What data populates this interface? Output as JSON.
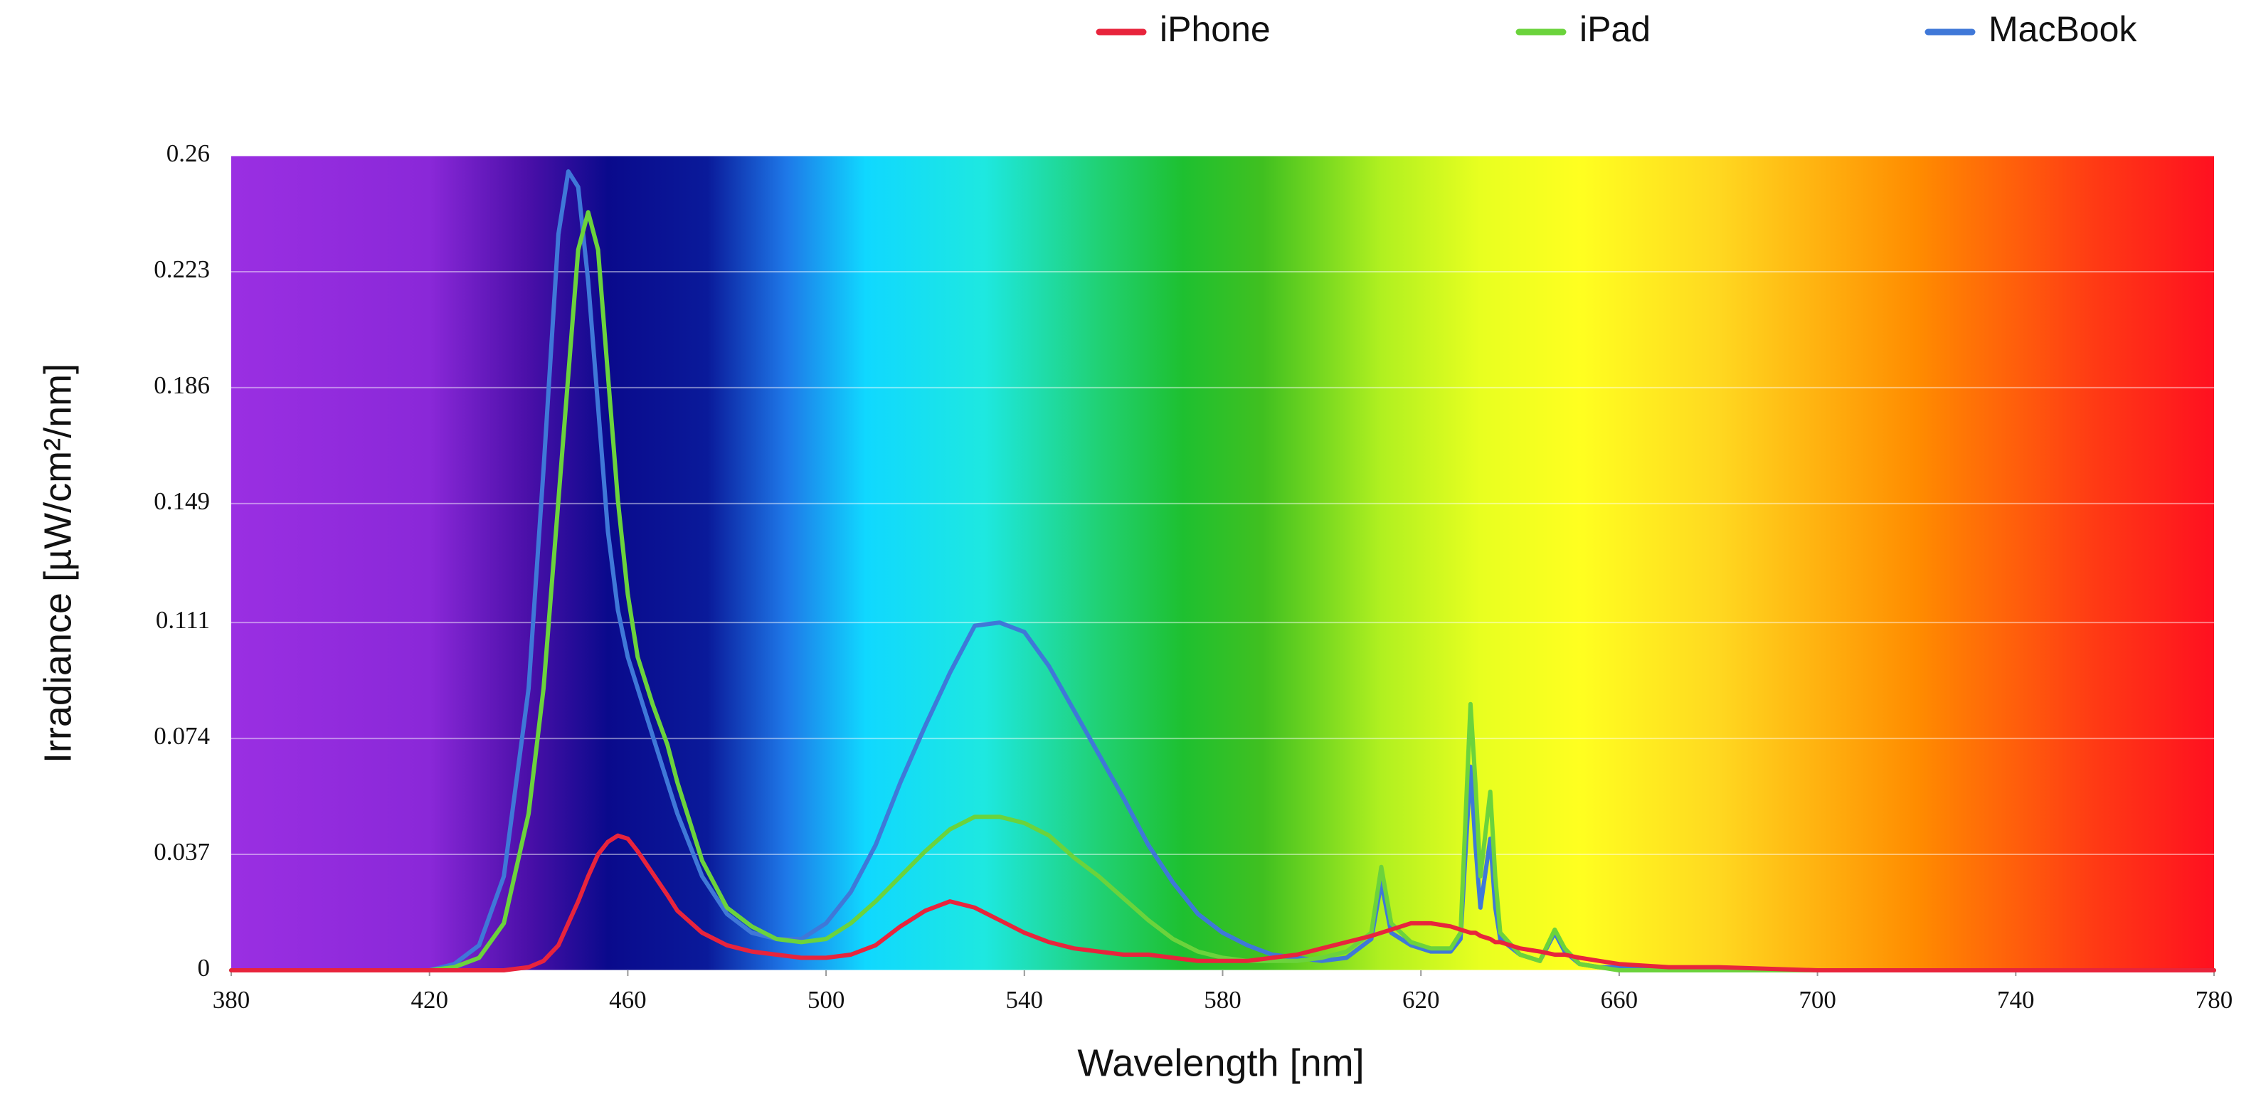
{
  "chart_data": {
    "type": "line",
    "x_label": "Wavelength [nm]",
    "y_label": "Irradiance [µW/cm²/nm]",
    "xlim": [
      380,
      780
    ],
    "xticks": [
      380,
      420,
      460,
      500,
      540,
      580,
      620,
      660,
      700,
      740,
      780
    ],
    "ylim": [
      0,
      0.26
    ],
    "yticks": [
      0,
      0.037,
      0.074,
      0.111,
      0.149,
      0.186,
      0.223,
      0.26
    ],
    "grid": true,
    "legend": "top",
    "x": [
      380,
      400,
      420,
      425,
      430,
      435,
      440,
      443,
      446,
      448,
      450,
      452,
      454,
      456,
      458,
      460,
      462,
      465,
      468,
      470,
      475,
      480,
      485,
      490,
      495,
      500,
      505,
      510,
      515,
      520,
      525,
      530,
      535,
      540,
      545,
      550,
      555,
      560,
      565,
      570,
      575,
      580,
      585,
      590,
      595,
      600,
      605,
      610,
      612,
      614,
      618,
      622,
      626,
      628,
      630,
      631,
      632,
      634,
      635,
      636,
      640,
      644,
      647,
      649,
      652,
      656,
      660,
      670,
      680,
      700,
      740,
      780
    ],
    "series": [
      {
        "name": "iPhone",
        "color": "#e8243c",
        "values": [
          0,
          0,
          0,
          0,
          0,
          0,
          0.001,
          0.003,
          0.008,
          0.015,
          0.022,
          0.03,
          0.037,
          0.041,
          0.043,
          0.042,
          0.038,
          0.031,
          0.024,
          0.019,
          0.012,
          0.008,
          0.006,
          0.005,
          0.004,
          0.004,
          0.005,
          0.008,
          0.014,
          0.019,
          0.022,
          0.02,
          0.016,
          0.012,
          0.009,
          0.007,
          0.006,
          0.005,
          0.005,
          0.004,
          0.003,
          0.003,
          0.003,
          0.004,
          0.005,
          0.007,
          0.009,
          0.011,
          0.012,
          0.013,
          0.015,
          0.015,
          0.014,
          0.013,
          0.012,
          0.012,
          0.011,
          0.01,
          0.009,
          0.009,
          0.007,
          0.006,
          0.005,
          0.005,
          0.004,
          0.003,
          0.002,
          0.001,
          0.001,
          0,
          0,
          0
        ]
      },
      {
        "name": "iPad",
        "color": "#6bd33c",
        "values": [
          0,
          0,
          0,
          0.001,
          0.004,
          0.015,
          0.05,
          0.09,
          0.15,
          0.19,
          0.23,
          0.242,
          0.23,
          0.19,
          0.15,
          0.12,
          0.1,
          0.085,
          0.072,
          0.06,
          0.035,
          0.02,
          0.014,
          0.01,
          0.009,
          0.01,
          0.015,
          0.022,
          0.03,
          0.038,
          0.045,
          0.049,
          0.049,
          0.047,
          0.043,
          0.036,
          0.03,
          0.023,
          0.016,
          0.01,
          0.006,
          0.004,
          0.003,
          0.003,
          0.003,
          0.004,
          0.006,
          0.012,
          0.033,
          0.015,
          0.009,
          0.007,
          0.007,
          0.012,
          0.085,
          0.06,
          0.03,
          0.057,
          0.03,
          0.012,
          0.005,
          0.003,
          0.013,
          0.007,
          0.002,
          0.001,
          0,
          0,
          0,
          0,
          0,
          0
        ]
      },
      {
        "name": "MacBook",
        "color": "#3f78d8",
        "values": [
          0,
          0,
          0,
          0.002,
          0.008,
          0.03,
          0.09,
          0.16,
          0.235,
          0.255,
          0.25,
          0.22,
          0.18,
          0.14,
          0.115,
          0.1,
          0.09,
          0.075,
          0.06,
          0.05,
          0.03,
          0.018,
          0.012,
          0.01,
          0.01,
          0.015,
          0.025,
          0.04,
          0.06,
          0.078,
          0.095,
          0.11,
          0.111,
          0.108,
          0.097,
          0.083,
          0.069,
          0.055,
          0.04,
          0.028,
          0.018,
          0.012,
          0.008,
          0.005,
          0.004,
          0.003,
          0.004,
          0.01,
          0.028,
          0.012,
          0.008,
          0.006,
          0.006,
          0.01,
          0.065,
          0.04,
          0.02,
          0.042,
          0.02,
          0.01,
          0.005,
          0.003,
          0.012,
          0.006,
          0.002,
          0.001,
          0.001,
          0,
          0,
          0,
          0,
          0
        ]
      }
    ]
  }
}
